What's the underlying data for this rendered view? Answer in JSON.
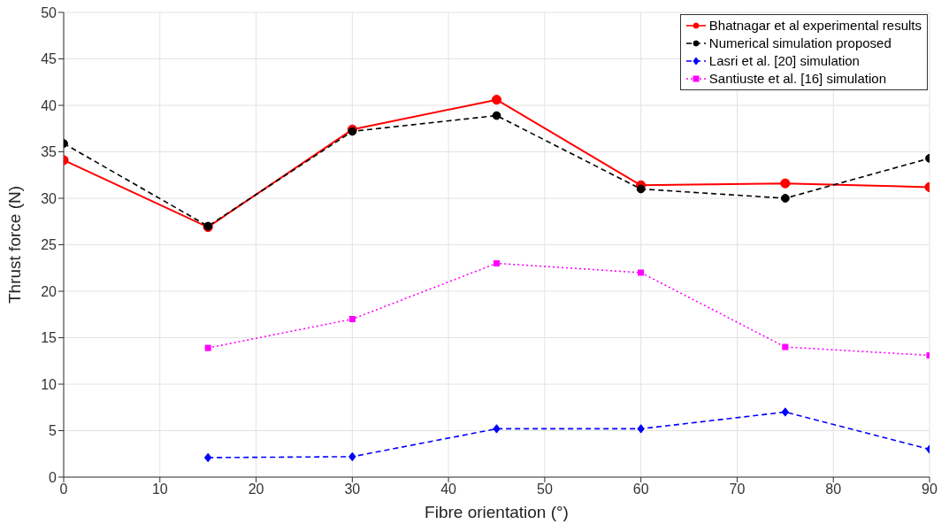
{
  "chart_data": {
    "type": "line",
    "xlabel": "Fibre orientation (°)",
    "ylabel": "Thrust force (N)",
    "x": [
      0,
      15,
      30,
      45,
      60,
      75,
      90
    ],
    "xlim": [
      0,
      90
    ],
    "xticks": [
      0,
      10,
      20,
      30,
      40,
      50,
      60,
      70,
      80,
      90
    ],
    "ylim": [
      0,
      50
    ],
    "yticks": [
      0,
      5,
      10,
      15,
      20,
      25,
      30,
      35,
      40,
      45,
      50
    ],
    "grid": true,
    "legend": "top right",
    "series": [
      {
        "name": "Bhatnagar et al experimental results",
        "color": "#ff0000",
        "marker": "circle",
        "line_style": "solid",
        "values": [
          34.1,
          26.9,
          37.4,
          40.6,
          31.4,
          31.6,
          31.2
        ]
      },
      {
        "name": "Numerical simulation proposed",
        "color": "#000000",
        "marker": "circle",
        "line_style": "dashed",
        "values": [
          35.9,
          27.0,
          37.2,
          38.9,
          31.0,
          30.0,
          34.3
        ]
      },
      {
        "name": "Lasri et al. [20] simulation",
        "color": "#0000ff",
        "marker": "diamond",
        "line_style": "dashed",
        "values": [
          null,
          2.1,
          2.2,
          5.2,
          5.2,
          7.0,
          3.0
        ]
      },
      {
        "name": "Santiuste et al. [16] simulation",
        "color": "#ff00ff",
        "marker": "square",
        "line_style": "dotted",
        "values": [
          null,
          13.9,
          17.0,
          23.0,
          22.0,
          14.0,
          13.1
        ]
      }
    ]
  }
}
